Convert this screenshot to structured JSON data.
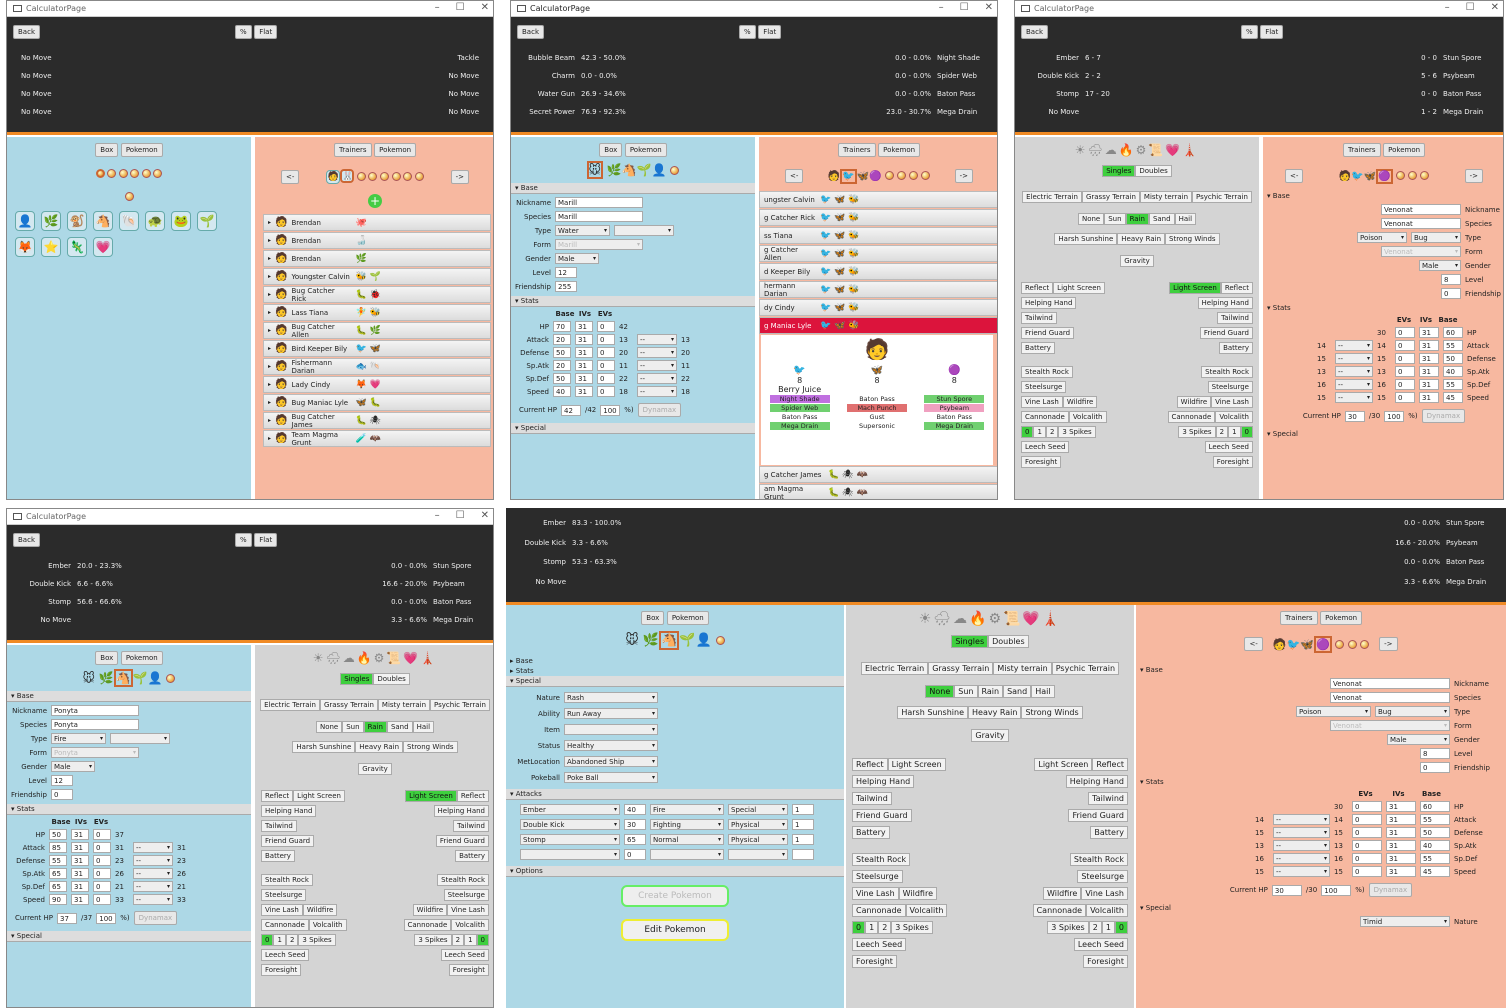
{
  "window_title": "CalculatorPage",
  "btns": {
    "back": "Back",
    "pct": "%",
    "flat": "Flat",
    "box": "Box",
    "pokemon": "Pokemon",
    "trainers": "Trainers",
    "prev": "<-",
    "next": "->",
    "singles": "Singles",
    "doubles": "Doubles",
    "gravity": "Gravity",
    "create": "Create Pokemon",
    "edit": "Edit Pokemon"
  },
  "sections": {
    "base": "Base",
    "stats": "Stats",
    "special": "Special",
    "attacks": "Attacks",
    "options": "Options"
  },
  "labels": {
    "nickname": "Nickname",
    "species": "Species",
    "type": "Type",
    "form": "Form",
    "gender": "Gender",
    "level": "Level",
    "friendship": "Friendship",
    "base": "Base",
    "ivs": "IVs",
    "evs": "EVs",
    "hp": "HP",
    "attack": "Attack",
    "defense": "Defense",
    "spatk": "Sp.Atk",
    "spdef": "Sp.Def",
    "speed": "Speed",
    "current_hp": "Current HP",
    "dynamax": "Dynamax",
    "nature": "Nature",
    "ability": "Ability",
    "item": "Item",
    "status": "Status",
    "metloc": "MetLocation",
    "pokeball": "Pokeball"
  },
  "terrains": [
    "Electric Terrain",
    "Grassy Terrain",
    "Misty terrain",
    "Psychic Terrain"
  ],
  "weather": [
    "None",
    "Sun",
    "Rain",
    "Sand",
    "Hail"
  ],
  "weather2": [
    "Harsh Sunshine",
    "Heavy Rain",
    "Strong Winds"
  ],
  "side_left": [
    "Reflect",
    "Light Screen",
    "Helping Hand",
    "Tailwind",
    "Friend Guard",
    "Battery",
    "Stealth Rock",
    "Steelsurge",
    "Vine Lash",
    "Wildfire",
    "Cannonade",
    "Volcalith",
    "0",
    "1",
    "2",
    "3 Spikes",
    "Leech Seed",
    "Foresight"
  ],
  "side_right": [
    "Light Screen",
    "Reflect",
    "Helping Hand",
    "Tailwind",
    "Friend Guard",
    "Battery",
    "Stealth Rock",
    "Steelsurge",
    "Wildfire",
    "Vine Lash",
    "Cannonade",
    "Volcalith",
    "3 Spikes",
    "2",
    "1",
    "0",
    "Leech Seed",
    "Foresight"
  ],
  "w1": {
    "moves": [
      [
        "No Move",
        "Tackle"
      ],
      [
        "No Move",
        "No Move"
      ],
      [
        "No Move",
        "No Move"
      ],
      [
        "No Move",
        "No Move"
      ]
    ],
    "trainers": [
      "Brendan",
      "Brendan",
      "Brendan",
      "Youngster Calvin",
      "Bug Catcher Rick",
      "Lass Tiana",
      "Bug Catcher Allen",
      "Bird Keeper Bily",
      "Fishermann Darian",
      "Lady Cindy",
      "Bug Maniac Lyle",
      "Bug Catcher James",
      "Team Magma Grunt"
    ]
  },
  "w2": {
    "moves": [
      [
        "Bubble Beam",
        "42.3 - 50.0%",
        "0.0 - 0.0%",
        "Night Shade"
      ],
      [
        "Charm",
        "0.0 - 0.0%",
        "0.0 - 0.0%",
        "Spider Web"
      ],
      [
        "Water Gun",
        "26.9 - 34.6%",
        "0.0 - 0.0%",
        "Baton Pass"
      ],
      [
        "Secret Power",
        "76.9 - 92.3%",
        "23.0 - 30.7%",
        "Mega Drain"
      ]
    ],
    "nickname": "Marill",
    "species": "Marill",
    "type1": "Water",
    "form": "Marill",
    "gender": "Male",
    "level": "12",
    "friendship": "255",
    "stats": [
      [
        "HP",
        "70",
        "31",
        "0",
        "42",
        "",
        ""
      ],
      [
        "Attack",
        "20",
        "31",
        "0",
        "13",
        "--",
        "13"
      ],
      [
        "Defense",
        "50",
        "31",
        "0",
        "20",
        "--",
        "20"
      ],
      [
        "Sp.Atk",
        "20",
        "31",
        "0",
        "11",
        "--",
        "11"
      ],
      [
        "Sp.Def",
        "50",
        "31",
        "0",
        "22",
        "--",
        "22"
      ],
      [
        "Speed",
        "40",
        "31",
        "0",
        "18",
        "--",
        "18"
      ]
    ],
    "cur_hp": "42",
    "max_hp": "/42",
    "pct": "100",
    "pct_sym": "%)",
    "trainers": [
      "ungster Calvin",
      "g Catcher Rick",
      "ss Tiana",
      "g Catcher Allen",
      "d Keeper Bily",
      "hermann Darian",
      "dy Cindy",
      "g Maniac Lyle"
    ],
    "trainers2": [
      "g Catcher James",
      "am Magma Grunt"
    ],
    "lvls": [
      "8",
      "8",
      "8"
    ],
    "item": "Berry Juice",
    "movesA": [
      "Night Shade",
      "Spider Web",
      "Baton Pass",
      "Mega Drain"
    ],
    "movesB": [
      "Baton Pass",
      "Mach Punch",
      "Gust",
      "Supersonic"
    ],
    "movesC": [
      "Stun Spore",
      "Psybeam",
      "Baton Pass",
      "Mega Drain"
    ]
  },
  "w3": {
    "moves": [
      [
        "Ember",
        "6 - 7",
        "0 - 0",
        "Stun Spore"
      ],
      [
        "Double Kick",
        "2 - 2",
        "5 - 6",
        "Psybeam"
      ],
      [
        "Stomp",
        "17 - 20",
        "0 - 0",
        "Baton Pass"
      ],
      [
        "No Move",
        "",
        "1 - 2",
        "Mega Drain"
      ]
    ],
    "nickname": "Venonat",
    "species": "Venonat",
    "type1": "Poison",
    "type2": "Bug",
    "form": "Venonat",
    "gender": "Male",
    "level": "8",
    "friendship": "0",
    "stats": [
      [
        "HP",
        "60",
        "31",
        "0",
        "30",
        "",
        ""
      ],
      [
        "Attack",
        "55",
        "31",
        "0",
        "14",
        "--",
        "14"
      ],
      [
        "Defense",
        "50",
        "31",
        "0",
        "15",
        "--",
        "15"
      ],
      [
        "Sp.Atk",
        "40",
        "31",
        "0",
        "13",
        "--",
        "13"
      ],
      [
        "Sp.Def",
        "55",
        "31",
        "0",
        "16",
        "--",
        "16"
      ],
      [
        "Speed",
        "45",
        "31",
        "0",
        "15",
        "--",
        "15"
      ]
    ],
    "cur_hp": "30",
    "max_hp": "/30",
    "pct": "100",
    "pct_sym": "%)"
  },
  "w4": {
    "moves": [
      [
        "Ember",
        "20.0 - 23.3%",
        "0.0 - 0.0%",
        "Stun Spore"
      ],
      [
        "Double Kick",
        "6.6 - 6.6%",
        "16.6 - 20.0%",
        "Psybeam"
      ],
      [
        "Stomp",
        "56.6 - 66.6%",
        "0.0 - 0.0%",
        "Baton Pass"
      ],
      [
        "No Move",
        "",
        "3.3 - 6.6%",
        "Mega Drain"
      ]
    ],
    "nickname": "Ponyta",
    "species": "Ponyta",
    "type1": "Fire",
    "form": "Ponyta",
    "gender": "Male",
    "level": "12",
    "friendship": "0",
    "stats": [
      [
        "HP",
        "50",
        "31",
        "0",
        "37",
        "",
        ""
      ],
      [
        "Attack",
        "85",
        "31",
        "0",
        "31",
        "--",
        "31"
      ],
      [
        "Defense",
        "55",
        "31",
        "0",
        "23",
        "--",
        "23"
      ],
      [
        "Sp.Atk",
        "65",
        "31",
        "0",
        "26",
        "--",
        "26"
      ],
      [
        "Sp.Def",
        "65",
        "31",
        "0",
        "21",
        "--",
        "21"
      ],
      [
        "Speed",
        "90",
        "31",
        "0",
        "33",
        "--",
        "33"
      ]
    ],
    "cur_hp": "37",
    "max_hp": "/37",
    "pct": "100",
    "pct_sym": "%)"
  },
  "w5": {
    "moves": [
      [
        "Ember",
        "83.3 - 100.0%",
        "0.0 - 0.0%",
        "Stun Spore"
      ],
      [
        "Double Kick",
        "3.3 - 6.6%",
        "16.6 - 20.0%",
        "Psybeam"
      ],
      [
        "Stomp",
        "53.3 - 63.3%",
        "0.0 - 0.0%",
        "Baton Pass"
      ],
      [
        "No Move",
        "",
        "3.3 - 6.6%",
        "Mega Drain"
      ]
    ],
    "nature": "Rash",
    "ability": "Run Away",
    "item": "",
    "status": "Healthy",
    "metloc": "Abandoned Ship",
    "pokeball": "Poke Ball",
    "attacks": [
      [
        "Ember",
        "40",
        "Fire",
        "Special",
        "1"
      ],
      [
        "Double Kick",
        "30",
        "Fighting",
        "Physical",
        "1"
      ],
      [
        "Stomp",
        "65",
        "Normal",
        "Physical",
        "1"
      ],
      [
        "",
        "0",
        "",
        "",
        ""
      ]
    ],
    "nature_r": "Timid"
  }
}
